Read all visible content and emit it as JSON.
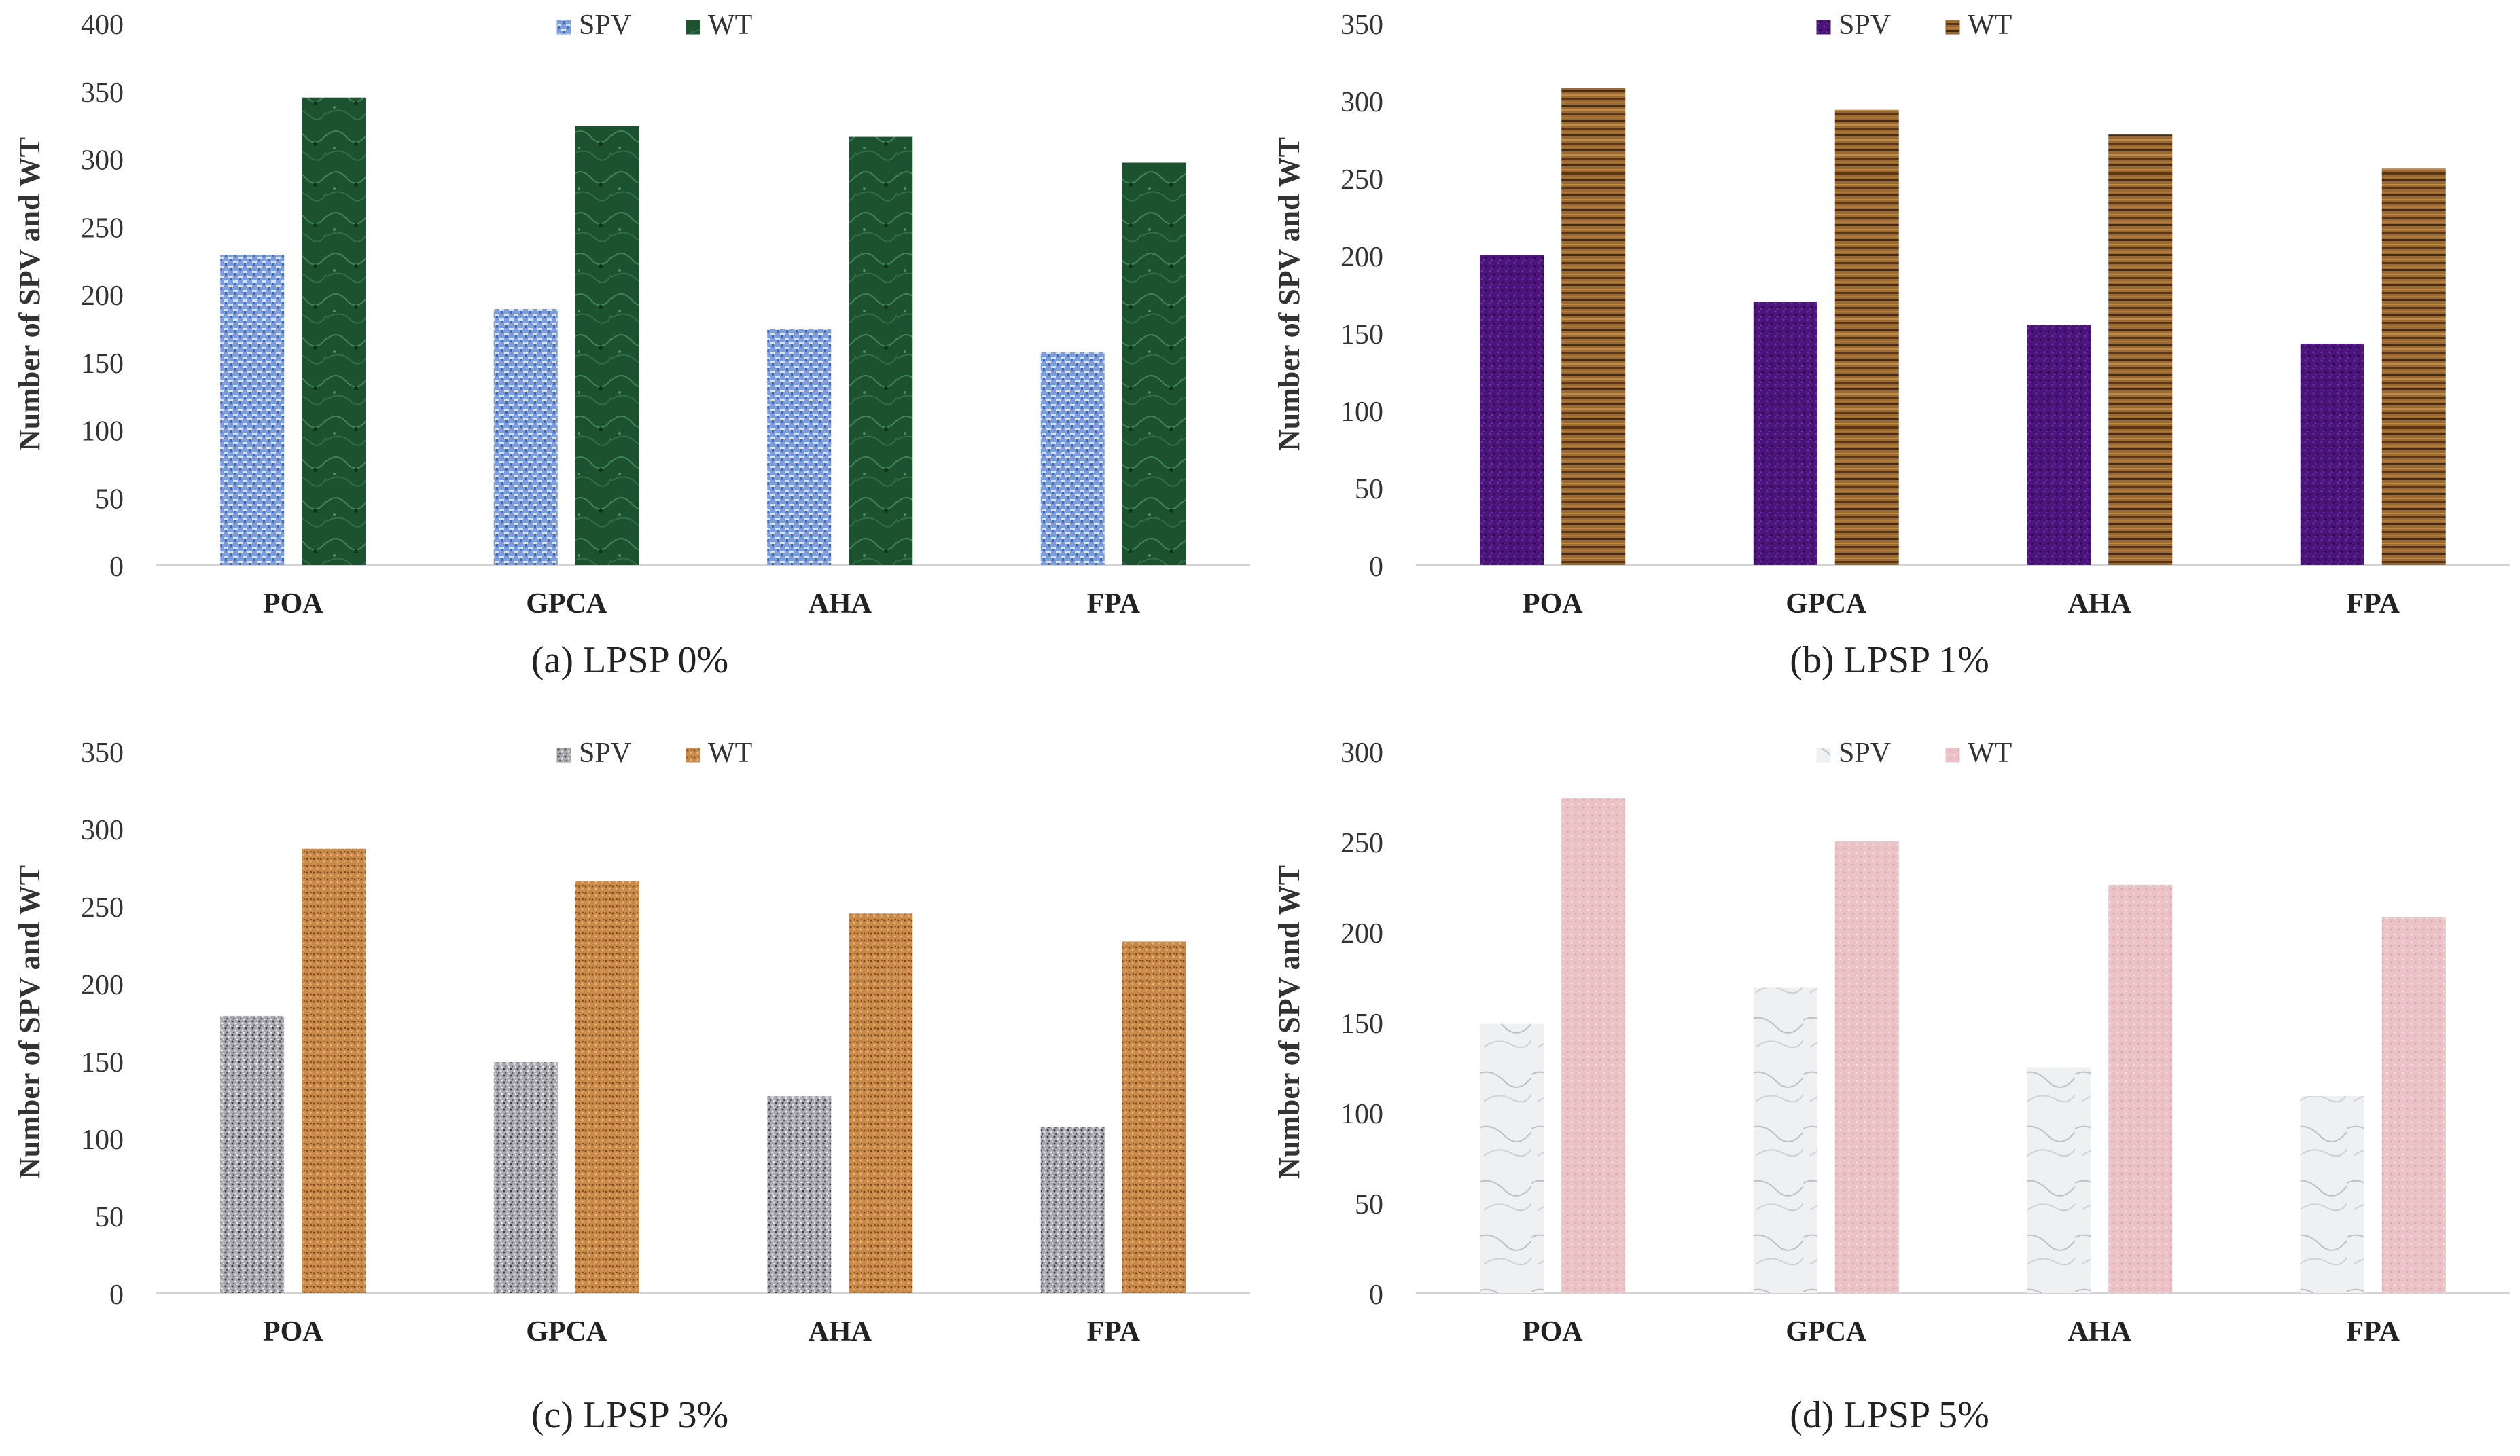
{
  "chart_data": [
    {
      "id": "a",
      "type": "bar",
      "title": "(a) LPSP 0%",
      "xlabel": "",
      "ylabel": "Number of SPV and WT",
      "categories": [
        "POA",
        "GPCA",
        "AHA",
        "FPA"
      ],
      "ylim": [
        0,
        400
      ],
      "yticks": [
        0,
        50,
        100,
        150,
        200,
        250,
        300,
        350,
        400
      ],
      "legend_position": "top-center",
      "series": [
        {
          "name": "SPV",
          "values": [
            229,
            189,
            174,
            157
          ],
          "color": "#7d9edc",
          "pattern": "pa-spv"
        },
        {
          "name": "WT",
          "values": [
            345,
            324,
            316,
            297
          ],
          "color": "#1f5a33",
          "pattern": "pa-wt"
        }
      ]
    },
    {
      "id": "b",
      "type": "bar",
      "title": "(b) LPSP 1%",
      "xlabel": "",
      "ylabel": "Number of SPV and WT",
      "categories": [
        "POA",
        "GPCA",
        "AHA",
        "FPA"
      ],
      "ylim": [
        0,
        350
      ],
      "yticks": [
        0,
        50,
        100,
        150,
        200,
        250,
        300,
        350
      ],
      "legend_position": "top-center",
      "series": [
        {
          "name": "SPV",
          "values": [
            200,
            170,
            155,
            143
          ],
          "color": "#4b1478",
          "pattern": "pb-spv"
        },
        {
          "name": "WT",
          "values": [
            308,
            294,
            278,
            256
          ],
          "color": "#8a5a24",
          "pattern": "pb-wt"
        }
      ]
    },
    {
      "id": "c",
      "type": "bar",
      "title": "(c) LPSP 3%",
      "xlabel": "",
      "ylabel": "Number of SPV and WT",
      "categories": [
        "POA",
        "GPCA",
        "AHA",
        "FPA"
      ],
      "ylim": [
        0,
        350
      ],
      "yticks": [
        0,
        50,
        100,
        150,
        200,
        250,
        300,
        350
      ],
      "legend_position": "top-center",
      "series": [
        {
          "name": "SPV",
          "values": [
            179,
            149,
            127,
            107
          ],
          "color": "#9a9aa0",
          "pattern": "pc-spv"
        },
        {
          "name": "WT",
          "values": [
            287,
            266,
            245,
            227
          ],
          "color": "#c98a4a",
          "pattern": "pc-wt"
        }
      ]
    },
    {
      "id": "d",
      "type": "bar",
      "title": "(d) LPSP 5%",
      "xlabel": "",
      "ylabel": "Number of SPV and WT",
      "categories": [
        "POA",
        "GPCA",
        "AHA",
        "FPA"
      ],
      "ylim": [
        0,
        300
      ],
      "yticks": [
        0,
        50,
        100,
        150,
        200,
        250,
        300
      ],
      "legend_position": "top-center",
      "series": [
        {
          "name": "SPV",
          "values": [
            149,
            169,
            125,
            109
          ],
          "color": "#eceef0",
          "pattern": "pd-spv"
        },
        {
          "name": "WT",
          "values": [
            274,
            250,
            226,
            208
          ],
          "color": "#ecc3c6",
          "pattern": "pd-wt"
        }
      ]
    }
  ]
}
